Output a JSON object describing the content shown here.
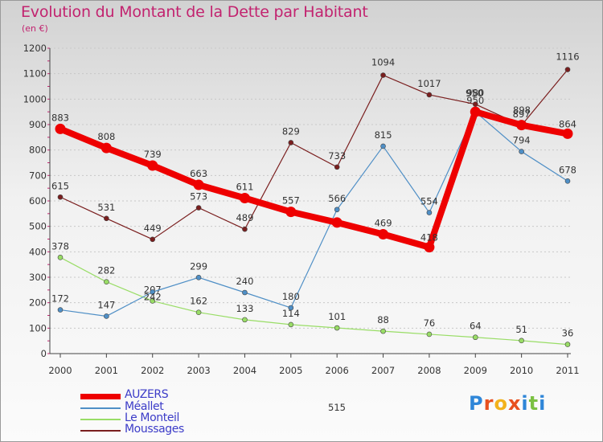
{
  "header": {
    "title": "Evolution du Montant de la Dette par Habitant",
    "subtitle": "(en €)"
  },
  "logo": {
    "text": "Proxiti",
    "letter_colors": [
      "#2f86d8",
      "#e8501e",
      "#f2b21c",
      "#e8501e",
      "#2f86d8",
      "#7bc142",
      "#2f86d8"
    ]
  },
  "chart_data": {
    "type": "line",
    "title": "Evolution du Montant de la Dette par Habitant",
    "subtitle": "(en €)",
    "x": [
      "2000",
      "2001",
      "2002",
      "2003",
      "2004",
      "2005",
      "2006",
      "2007",
      "2008",
      "2009",
      "2010",
      "2011"
    ],
    "ylim": [
      0,
      1200
    ],
    "yticks": [
      0,
      100,
      200,
      300,
      400,
      500,
      600,
      700,
      800,
      900,
      1000,
      1100,
      1200
    ],
    "grid": true,
    "legend": "bottom-left",
    "series": [
      {
        "name": "AUZERS",
        "color": "#ee0000",
        "values": [
          883,
          808,
          739,
          663,
          611,
          557,
          515,
          469,
          418,
          950,
          898,
          864
        ],
        "labels": [
          "883",
          "808",
          "739",
          "663",
          "611",
          "557",
          "",
          "469",
          "418",
          "",
          "",
          "864"
        ]
      },
      {
        "name": "Méallet",
        "color": "#4f8fc6",
        "values": [
          172,
          147,
          242,
          299,
          240,
          180,
          566,
          815,
          554,
          950,
          794,
          678
        ],
        "labels": [
          "172",
          "147",
          "242",
          "299",
          "240",
          "180",
          "566",
          "815",
          "554",
          "950",
          "794",
          "678"
        ]
      },
      {
        "name": "Le Monteil",
        "color": "#99dd66",
        "values": [
          378,
          282,
          207,
          162,
          133,
          114,
          101,
          88,
          76,
          64,
          51,
          36
        ],
        "labels": [
          "378",
          "282",
          "207",
          "162",
          "133",
          "114",
          "101",
          "88",
          "76",
          "64",
          "51",
          "36"
        ]
      },
      {
        "name": "Moussages",
        "color": "#7a1e1e",
        "values": [
          615,
          531,
          449,
          573,
          489,
          829,
          733,
          1094,
          1017,
          980,
          897,
          1116
        ],
        "labels": [
          "615",
          "531",
          "449",
          "573",
          "489",
          "829",
          "733",
          "1094",
          "1017",
          "980",
          "897",
          "1116"
        ]
      }
    ],
    "extra_labels": [
      "515",
      "950",
      "898"
    ]
  }
}
